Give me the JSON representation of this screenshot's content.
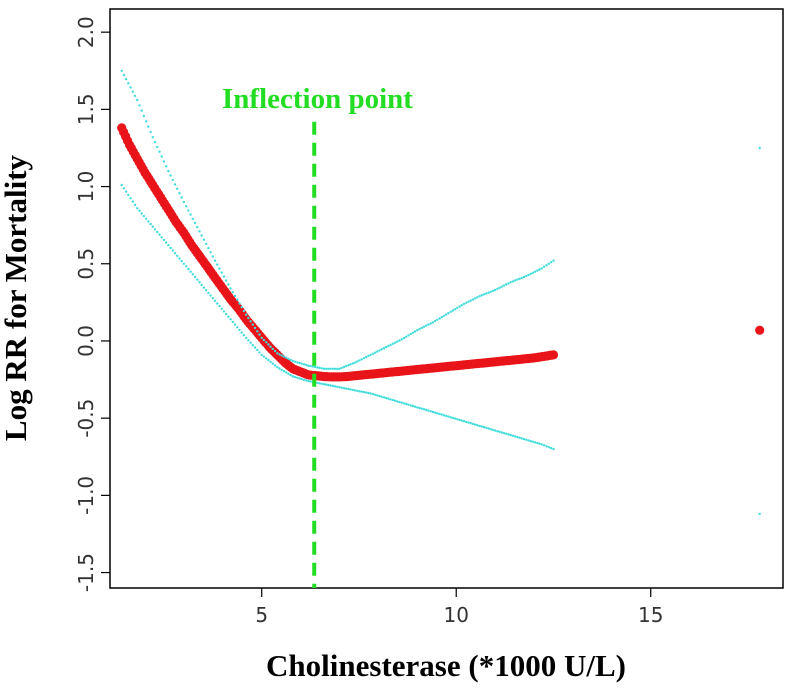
{
  "chart_data": {
    "type": "scatter",
    "xlabel": "Cholinesterase (*1000 U/L)",
    "ylabel": "Log RR for Mortality",
    "xlim": [
      1.1,
      18.4
    ],
    "ylim": [
      -1.6,
      2.15
    ],
    "xticks": [
      5,
      10,
      15
    ],
    "yticks": [
      -1.5,
      -1.0,
      -0.5,
      0.0,
      0.5,
      1.0,
      1.5,
      2.0
    ],
    "xtick_labels": [
      "5",
      "10",
      "15"
    ],
    "ytick_labels": [
      "-1.5",
      "-1.0",
      "-0.5",
      "0.0",
      "0.5",
      "1.0",
      "1.5",
      "2.0"
    ],
    "grid": false,
    "annotations": [
      {
        "text": "Inflection point",
        "x": 6.35,
        "line_type": "vertical-dashed",
        "color": "#22dd22"
      }
    ],
    "series": [
      {
        "role": "estimate",
        "color": "#e8141a",
        "x": [
          1.4,
          1.6,
          1.8,
          2.0,
          2.2,
          2.4,
          2.6,
          2.8,
          3.0,
          3.2,
          3.4,
          3.6,
          3.8,
          4.0,
          4.2,
          4.4,
          4.6,
          4.8,
          5.0,
          5.2,
          5.4,
          5.6,
          5.8,
          6.0,
          6.2,
          6.4,
          6.6,
          6.8,
          7.0,
          7.2,
          7.4,
          7.6,
          7.8,
          8.0,
          8.2,
          8.4,
          8.6,
          8.8,
          9.0,
          9.2,
          9.4,
          9.6,
          9.8,
          10.0,
          10.2,
          10.4,
          10.6,
          10.8,
          11.0,
          11.2,
          11.4,
          11.6,
          11.8,
          12.0,
          12.5,
          17.8
        ],
        "y": [
          1.38,
          1.27,
          1.18,
          1.09,
          1.01,
          0.93,
          0.85,
          0.77,
          0.7,
          0.62,
          0.55,
          0.48,
          0.41,
          0.34,
          0.27,
          0.21,
          0.14,
          0.08,
          0.02,
          -0.04,
          -0.09,
          -0.14,
          -0.18,
          -0.2,
          -0.22,
          -0.225,
          -0.23,
          -0.233,
          -0.233,
          -0.23,
          -0.225,
          -0.22,
          -0.215,
          -0.21,
          -0.205,
          -0.2,
          -0.195,
          -0.19,
          -0.185,
          -0.18,
          -0.175,
          -0.17,
          -0.165,
          -0.16,
          -0.155,
          -0.15,
          -0.145,
          -0.14,
          -0.135,
          -0.13,
          -0.125,
          -0.12,
          -0.115,
          -0.11,
          -0.09,
          0.07
        ]
      },
      {
        "role": "upper-ci",
        "color": "#40dcdc",
        "x": [
          1.4,
          1.8,
          2.2,
          2.6,
          3.0,
          3.4,
          3.8,
          4.2,
          4.6,
          5.0,
          5.4,
          5.8,
          6.2,
          6.6,
          7.0,
          7.4,
          7.8,
          8.2,
          8.6,
          9.0,
          9.4,
          9.8,
          10.2,
          10.6,
          11.0,
          11.4,
          11.8,
          12.2,
          12.5,
          17.8
        ],
        "y": [
          1.75,
          1.56,
          1.32,
          1.1,
          0.9,
          0.71,
          0.52,
          0.34,
          0.17,
          0.02,
          -0.08,
          -0.13,
          -0.16,
          -0.18,
          -0.18,
          -0.14,
          -0.09,
          -0.04,
          0.01,
          0.07,
          0.12,
          0.18,
          0.24,
          0.29,
          0.33,
          0.38,
          0.42,
          0.47,
          0.52,
          1.25
        ]
      },
      {
        "role": "lower-ci",
        "color": "#40dcdc",
        "x": [
          1.4,
          1.8,
          2.2,
          2.6,
          3.0,
          3.4,
          3.8,
          4.2,
          4.6,
          5.0,
          5.4,
          5.8,
          6.2,
          6.6,
          7.0,
          7.4,
          7.8,
          8.2,
          8.6,
          9.0,
          9.4,
          9.8,
          10.2,
          10.6,
          11.0,
          11.4,
          11.8,
          12.2,
          12.5,
          17.8
        ],
        "y": [
          1.01,
          0.86,
          0.74,
          0.62,
          0.5,
          0.38,
          0.26,
          0.14,
          0.02,
          -0.09,
          -0.17,
          -0.23,
          -0.26,
          -0.28,
          -0.3,
          -0.32,
          -0.34,
          -0.37,
          -0.4,
          -0.43,
          -0.46,
          -0.49,
          -0.52,
          -0.55,
          -0.58,
          -0.61,
          -0.64,
          -0.67,
          -0.7,
          -1.12
        ]
      }
    ]
  }
}
